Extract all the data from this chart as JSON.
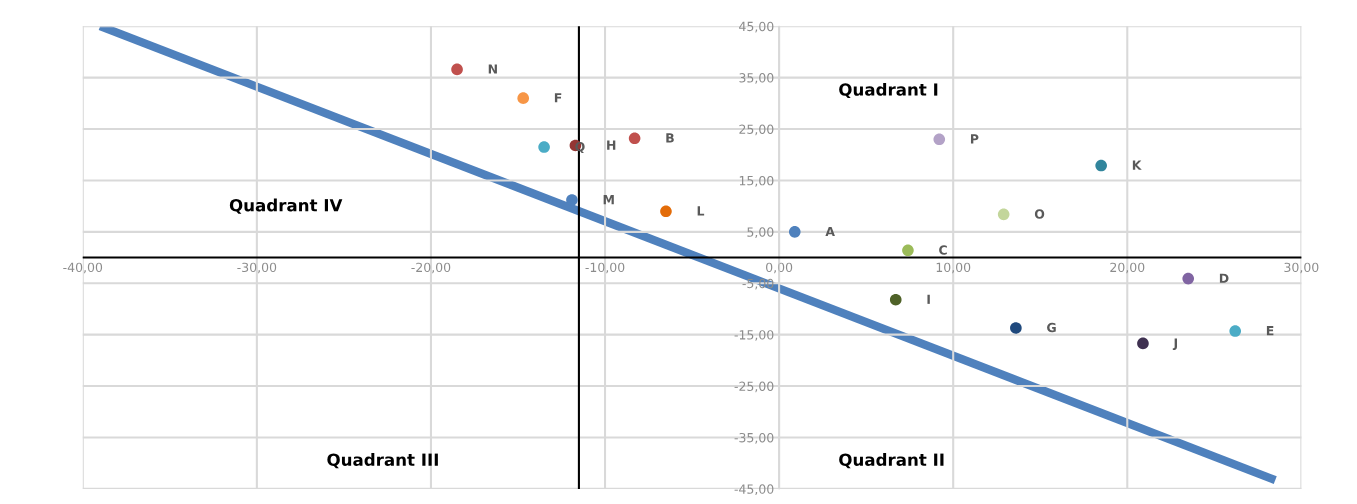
{
  "chart_data": {
    "type": "scatter",
    "xlim": [
      -40,
      30
    ],
    "xticks": [
      {
        "value": -40,
        "label": "-40,00"
      },
      {
        "value": -30,
        "label": "-30,00"
      },
      {
        "value": -20,
        "label": "-20,00"
      },
      {
        "value": -10,
        "label": "-10,00"
      },
      {
        "value": 0,
        "label": "0,00"
      },
      {
        "value": 10,
        "label": "10,00"
      },
      {
        "value": 20,
        "label": "20,00"
      },
      {
        "value": 30,
        "label": "30,00"
      }
    ],
    "ylim": [
      -45,
      45
    ],
    "yticks": [
      {
        "value": -45,
        "label": "-45,00"
      },
      {
        "value": -35,
        "label": "-35,00"
      },
      {
        "value": -25,
        "label": "-25,00"
      },
      {
        "value": -15,
        "label": "-15,00"
      },
      {
        "value": -5,
        "label": "-5,00"
      },
      {
        "value": 5,
        "label": "5,00"
      },
      {
        "value": 15,
        "label": "15,00"
      },
      {
        "value": 25,
        "label": "25,00"
      },
      {
        "value": 35,
        "label": "35,00"
      },
      {
        "value": 45,
        "label": "45,00"
      }
    ],
    "grid": true,
    "legend": false,
    "series": [
      {
        "type": "scatter",
        "marker": "circle",
        "x": [
          -18.5,
          -14.7,
          -13.5,
          -11.7,
          -8.3,
          -11.9,
          -6.5,
          0.9,
          7.4,
          23.5,
          6.7,
          9.2,
          18.5,
          12.9,
          13.6,
          20.9,
          26.2
        ],
        "values": [
          36.6,
          31.0,
          21.5,
          21.8,
          23.2,
          11.2,
          9.0,
          5.0,
          1.4,
          -4.1,
          -8.2,
          23.0,
          17.9,
          8.4,
          -13.7,
          -16.7,
          -14.3
        ],
        "colors": [
          "#c0504d",
          "#f79646",
          "#4bacc6",
          "#943634",
          "#c0504d",
          "#4f81bd",
          "#e36c09",
          "#4f81bd",
          "#9bbb59",
          "#8064a2",
          "#4f6228",
          "#b3a2c7",
          "#31859c",
          "#c3d69b",
          "#1f497d",
          "#3f3151",
          "#4bacc6"
        ]
      },
      {
        "type": "line",
        "x": [
          -39,
          28.5
        ],
        "values": [
          45,
          -43.3
        ],
        "color": "#4f81bd"
      }
    ],
    "ref_lines": [
      {
        "axis": "y",
        "value": 0,
        "color": "#000000"
      },
      {
        "axis": "x",
        "value": -11.5,
        "color": "#000000"
      }
    ],
    "annotations": [
      {
        "text": "N",
        "x": -18.5,
        "y": 36.6
      },
      {
        "text": "F",
        "x": -14.7,
        "y": 31.0
      },
      {
        "text": "Q",
        "x": -13.5,
        "y": 21.5
      },
      {
        "text": "H",
        "x": -11.7,
        "y": 21.8
      },
      {
        "text": "B",
        "x": -8.3,
        "y": 23.2
      },
      {
        "text": "M",
        "x": -11.9,
        "y": 11.2
      },
      {
        "text": "L",
        "x": -6.5,
        "y": 9.0
      },
      {
        "text": "A",
        "x": 0.9,
        "y": 5.0
      },
      {
        "text": "C",
        "x": 7.4,
        "y": 1.4
      },
      {
        "text": "D",
        "x": 23.5,
        "y": -4.1
      },
      {
        "text": "I",
        "x": 6.7,
        "y": -8.2
      },
      {
        "text": "P",
        "x": 9.2,
        "y": 23.0
      },
      {
        "text": "K",
        "x": 18.5,
        "y": 17.9
      },
      {
        "text": "O",
        "x": 12.9,
        "y": 8.4
      },
      {
        "text": "G",
        "x": 13.6,
        "y": -13.7
      },
      {
        "text": "J",
        "x": 20.9,
        "y": -16.7
      },
      {
        "text": "E",
        "x": 26.2,
        "y": -14.3
      },
      "Quadrant I",
      "Quadrant II",
      "Quadrant III",
      "Quadrant IV"
    ]
  }
}
